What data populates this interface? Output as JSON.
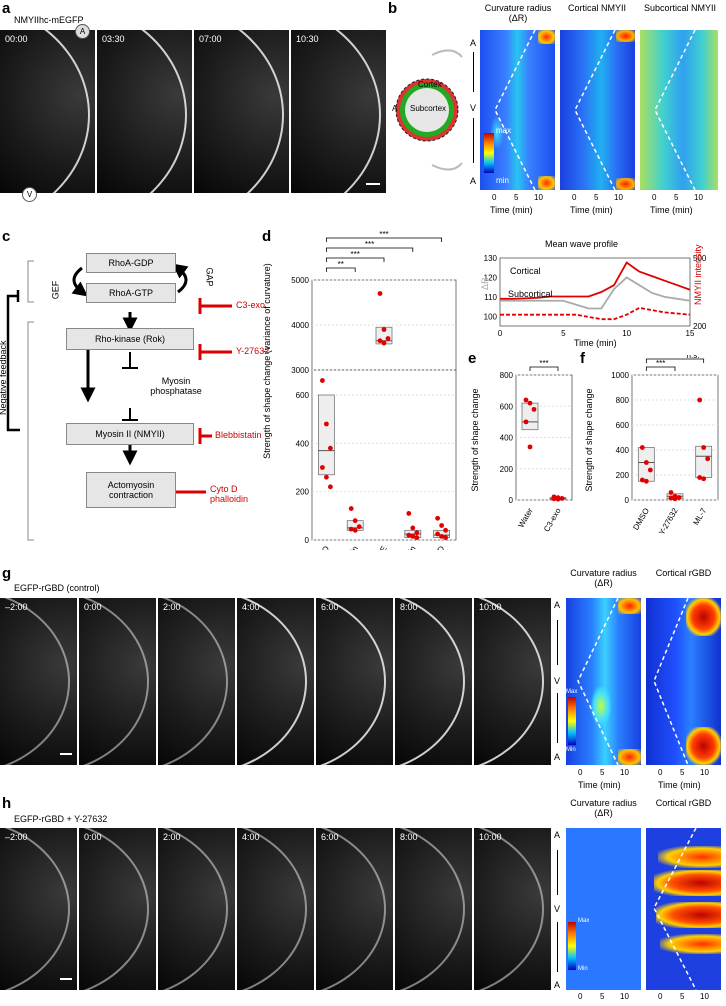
{
  "panels": {
    "a": {
      "letter": "a",
      "title": "NMYIIhc-mEGFP",
      "times": [
        "00:00",
        "03:30",
        "07:00",
        "10:30"
      ],
      "marker_top": "A",
      "marker_bottom": "V"
    },
    "b": {
      "letter": "b",
      "kymo_titles": [
        "Curvature radius (ΔR)",
        "Cortical NMYII",
        "Subcortical NMYII"
      ],
      "cortex": "Cortex",
      "subcortex": "Subcortex",
      "side_A": "A",
      "cbar_max": "max",
      "cbar_min": "min",
      "axis_labels": [
        "A",
        "V",
        "A"
      ],
      "xticks": [
        "0",
        "5",
        "10"
      ],
      "xlabel": "Time (min)"
    },
    "c": {
      "letter": "c",
      "nodes": [
        "RhoA-GDP",
        "RhoA-GTP",
        "Rho-kinase (Rok)",
        "Myosin phosphatase",
        "Myosin II (NMYII)",
        "Actomyosin contraction"
      ],
      "gef": "GEF",
      "gap": "GAP",
      "feedback": "Negative feedback",
      "inhibitors": [
        "C3-exo",
        "Y-27632",
        "Blebbistatin",
        "Cyto D phalloidin"
      ]
    },
    "d": {
      "letter": "d",
      "ylabel": "Strength of shape change (variance of curvature)",
      "sig": [
        "**",
        "***",
        "***",
        "***"
      ]
    },
    "mean": {
      "title": "Mean wave profile",
      "left_label": "ΔR",
      "right_label": "NMYII intensity",
      "cortical": "Cortical",
      "subcortical": "Subcortical",
      "xlabel": "Time (min)",
      "yticks_left": [
        "100",
        "110",
        "120",
        "130"
      ],
      "yticks_right": [
        "200",
        "500"
      ],
      "xticks": [
        "0",
        "5",
        "10",
        "15"
      ]
    },
    "e": {
      "letter": "e",
      "ylabel": "Strength of shape change",
      "sig": "***"
    },
    "f": {
      "letter": "f",
      "ylabel": "Strength of shape change",
      "sig": [
        "***",
        "n.s."
      ]
    },
    "g": {
      "letter": "g",
      "title": "EGFP-rGBD (control)",
      "times": [
        "–2:00",
        "0:00",
        "2:00",
        "4:00",
        "6:00",
        "8:00",
        "10:00"
      ],
      "kymo_titles": [
        "Curvature radius (ΔR)",
        "Cortical rGBD"
      ],
      "cbar_max": "Max",
      "cbar_min": "Min"
    },
    "h": {
      "letter": "h",
      "title": "EGFP-rGBD + Y-27632",
      "times": [
        "–2:00",
        "0:00",
        "2:00",
        "4:00",
        "6:00",
        "8:00",
        "10:00"
      ],
      "kymo_titles": [
        "Curvature radius (ΔR)",
        "Cortical rGBD"
      ],
      "cbar_max": "Max",
      "cbar_min": "Min"
    }
  },
  "chart_data": [
    {
      "type": "box",
      "panel": "d",
      "categories": [
        "DMSO",
        "Blebbistatin",
        "MRLC OE",
        "Phalloidin",
        "Cytochalasin D"
      ],
      "ylim_lower": [
        0,
        600
      ],
      "yticks_lower": [
        0,
        200,
        400,
        600
      ],
      "ylim_upper": [
        3000,
        5000
      ],
      "yticks_upper": [
        3000,
        4000,
        5000
      ],
      "points": [
        [
          660,
          480,
          380,
          300,
          260,
          220
        ],
        [
          130,
          80,
          55,
          45,
          40
        ],
        [
          4700,
          3900,
          3700,
          3650,
          3600
        ],
        [
          110,
          50,
          30,
          20,
          15,
          10
        ],
        [
          90,
          60,
          40,
          25,
          15,
          10
        ]
      ],
      "box": [
        [
          270,
          370,
          600
        ],
        [
          40,
          50,
          80
        ],
        [
          3580,
          3650,
          3950
        ],
        [
          10,
          25,
          40
        ],
        [
          10,
          20,
          40
        ]
      ]
    },
    {
      "type": "line",
      "panel": "mean",
      "x": [
        0,
        1,
        2,
        3,
        4,
        5,
        6,
        7,
        8,
        9,
        10,
        11,
        12,
        13,
        14,
        15
      ],
      "series": [
        {
          "name": "ΔR",
          "axis": "left",
          "color": "#aaaaaa",
          "values": [
            108,
            108,
            108,
            108,
            108,
            108,
            106,
            104,
            104,
            114,
            120,
            116,
            112,
            110,
            109,
            108
          ]
        },
        {
          "name": "Cortical",
          "axis": "right",
          "color": "#e00000",
          "values": [
            320,
            320,
            322,
            325,
            330,
            330,
            330,
            330,
            350,
            380,
            480,
            440,
            420,
            400,
            380,
            360
          ]
        },
        {
          "name": "Subcortical",
          "axis": "right",
          "color": "#e00000",
          "dashed": true,
          "values": [
            250,
            250,
            250,
            250,
            250,
            250,
            250,
            240,
            230,
            230,
            250,
            280,
            270,
            260,
            255,
            250
          ]
        }
      ],
      "ylim_left": [
        95,
        130
      ],
      "ylim_right": [
        200,
        500
      ],
      "xlim": [
        0,
        15
      ]
    },
    {
      "type": "box",
      "panel": "e",
      "categories": [
        "Water",
        "C3-exo"
      ],
      "ylim": [
        0,
        800
      ],
      "yticks": [
        0,
        200,
        400,
        600,
        800
      ],
      "points": [
        [
          640,
          620,
          580,
          500,
          340
        ],
        [
          20,
          15,
          10,
          8,
          5
        ]
      ],
      "box": [
        [
          450,
          500,
          620
        ],
        [
          5,
          10,
          15
        ]
      ]
    },
    {
      "type": "box",
      "panel": "f",
      "categories": [
        "DMSO",
        "Y-27632",
        "ML-7"
      ],
      "ylim": [
        0,
        1000
      ],
      "yticks": [
        0,
        200,
        400,
        600,
        800,
        1000
      ],
      "points": [
        [
          420,
          300,
          240,
          160,
          150
        ],
        [
          60,
          30,
          20,
          15,
          10
        ],
        [
          800,
          420,
          330,
          180,
          170
        ]
      ],
      "box": [
        [
          150,
          300,
          420
        ],
        [
          10,
          30,
          50
        ],
        [
          180,
          350,
          430
        ]
      ]
    }
  ]
}
